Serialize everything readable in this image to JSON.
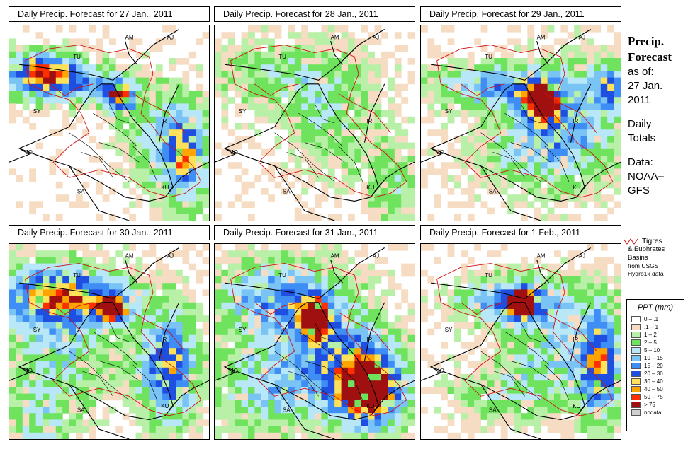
{
  "panels": [
    {
      "title": "Daily Precip. Forecast for  27 Jan., 2011",
      "id": 0
    },
    {
      "title": "Daily Precip. Forecast for  28 Jan., 2011",
      "id": 1
    },
    {
      "title": "Daily Precip. Forecast for  29 Jan., 2011",
      "id": 2
    },
    {
      "title": "Daily Precip. Forecast for  30 Jan., 2011",
      "id": 3
    },
    {
      "title": "Daily Precip. Forecast for  31 Jan., 2011",
      "id": 4
    },
    {
      "title": "Daily Precip. Forecast for  1 Feb., 2011",
      "id": 5
    }
  ],
  "map_labels": {
    "am": "AM",
    "aj": "AJ",
    "tu": "TU",
    "sy": "SY",
    "ir": "IR",
    "jo": "JO",
    "sa": "SA",
    "ku": "KU"
  },
  "sidebar": {
    "title_line1": "Precip.",
    "title_line2": "Forecast",
    "asof": "as of:",
    "date_line1": "27 Jan.",
    "date_line2": "2011",
    "daily_line1": "Daily",
    "daily_line2": "Totals",
    "data_line1": "Data:",
    "data_line2": "NOAA–",
    "data_line3": "GFS"
  },
  "basin_note": {
    "line1": "Tigres",
    "line2": "& Euphrates",
    "line3": "Basins",
    "line4": "from USGS",
    "line5": "Hydro1k data"
  },
  "legend": {
    "title": "PPT (mm)",
    "items": [
      {
        "label": "0 – .1",
        "color": "#ffffff"
      },
      {
        "label": ".1 – 1",
        "color": "#f5dcc2"
      },
      {
        "label": "1 – 2",
        "color": "#b9f0a8"
      },
      {
        "label": "2 – 5",
        "color": "#6fe35e"
      },
      {
        "label": "5 – 10",
        "color": "#b8e8f8"
      },
      {
        "label": "10 – 15",
        "color": "#79c3f5"
      },
      {
        "label": "15 – 20",
        "color": "#3f8ef5"
      },
      {
        "label": "20 – 30",
        "color": "#1f4fe0"
      },
      {
        "label": "30 – 40",
        "color": "#ffe15a"
      },
      {
        "label": "40 – 50",
        "color": "#ffa500"
      },
      {
        "label": "50 – 75",
        "color": "#ff3000"
      },
      {
        "label": "> 75",
        "color": "#a01010"
      },
      {
        "label": "nodata",
        "color": "#cfcfcf"
      }
    ]
  }
}
